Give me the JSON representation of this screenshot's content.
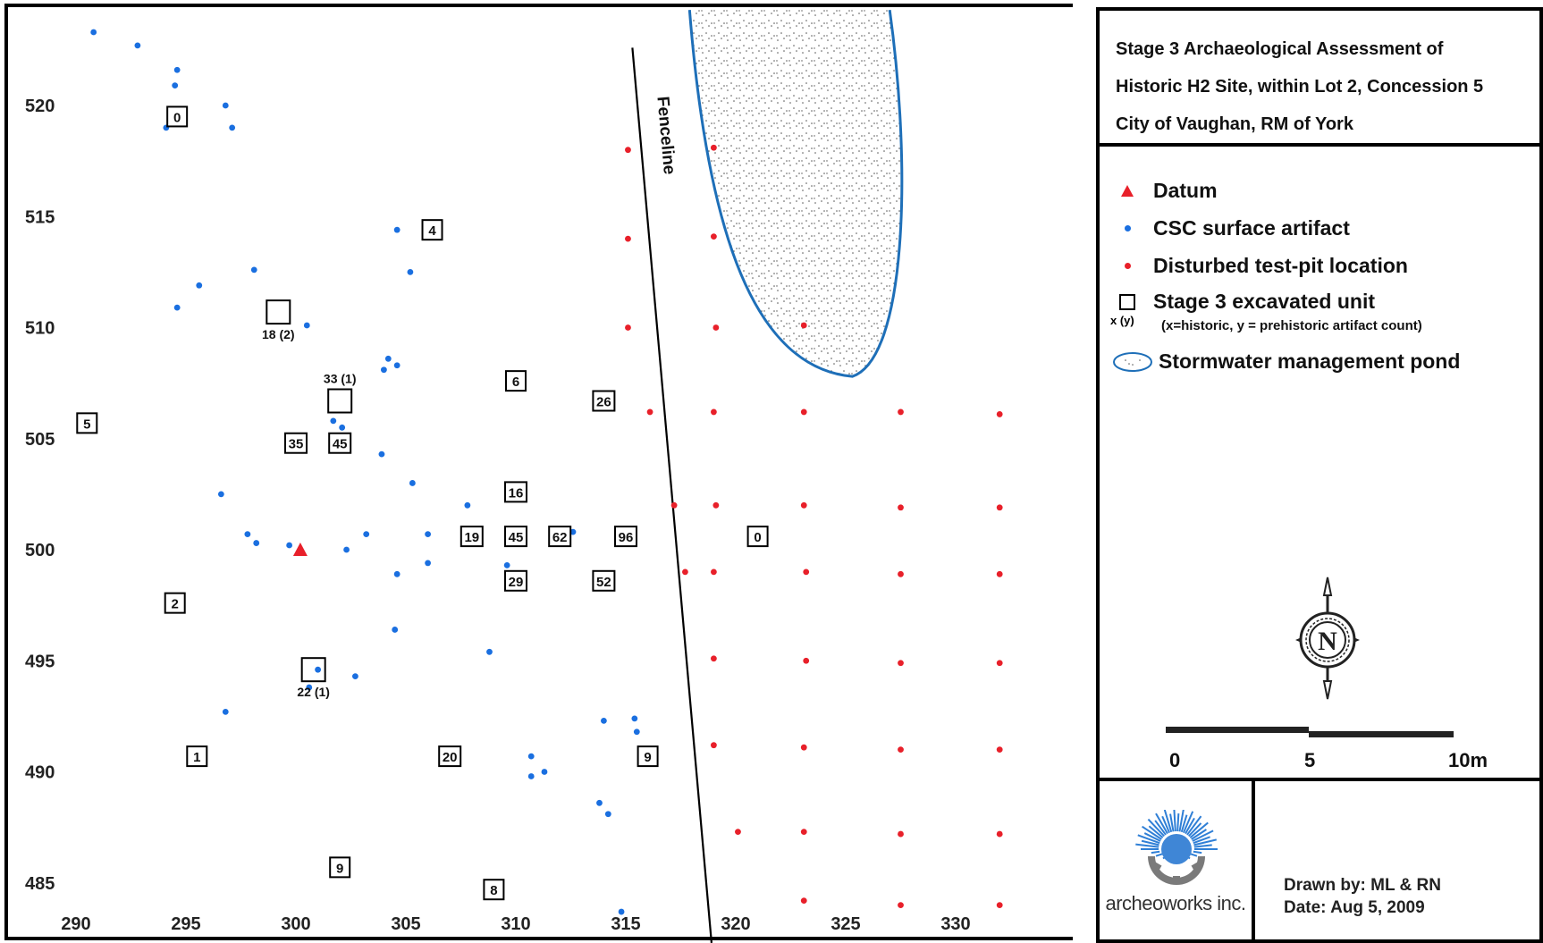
{
  "title_block": {
    "lines": [
      "Stage 3 Archaeological Assessment of",
      "Historic H2 Site, within Lot 2, Concession 5",
      "City of Vaughan, RM of York"
    ]
  },
  "legend": {
    "datum": "Datum",
    "csc_artifact": "CSC surface artifact",
    "test_pit": "Disturbed test-pit location",
    "excavated_unit": "Stage 3 excavated unit",
    "unit_key": "x (y)",
    "unit_note": "(x=historic, y = prehistoric artifact count)",
    "pond": "Stormwater management pond"
  },
  "scale_bar": {
    "labels": [
      "0",
      "5",
      "10m"
    ]
  },
  "logo": {
    "text": "archeoworks inc."
  },
  "credits": {
    "drawn_by": "Drawn by: ML & RN",
    "date": "Date: Aug 5, 2009"
  },
  "colors": {
    "datum": "#e8202a",
    "csc": "#1a6fe0",
    "test_pit": "#e8202a",
    "pond_outline": "#1e6fb8"
  },
  "map": {
    "x_ticks": [
      290,
      295,
      300,
      305,
      310,
      315,
      320,
      325,
      330
    ],
    "y_ticks": [
      520,
      515,
      510,
      505,
      500,
      495,
      490,
      485
    ],
    "fence_label": "Fenceline",
    "fence_line": [
      [
        315.3,
        522.6
      ],
      [
        318.9,
        482.3
      ]
    ],
    "datum_point": [
      300.2,
      500.0
    ],
    "pond": {
      "apex": [
        325.3,
        507.8
      ],
      "left_end": [
        317.9,
        524.3
      ],
      "right_end": [
        327.0,
        524.3
      ]
    },
    "csc_points": [
      [
        290.8,
        523.3
      ],
      [
        292.8,
        522.7
      ],
      [
        294.6,
        521.6
      ],
      [
        294.5,
        520.9
      ],
      [
        296.8,
        520.0
      ],
      [
        297.1,
        519.0
      ],
      [
        294.1,
        519.0
      ],
      [
        304.6,
        514.4
      ],
      [
        305.2,
        512.5
      ],
      [
        298.1,
        512.6
      ],
      [
        295.6,
        511.9
      ],
      [
        294.6,
        510.9
      ],
      [
        300.5,
        510.1
      ],
      [
        304.2,
        508.6
      ],
      [
        304.6,
        508.3
      ],
      [
        304.0,
        508.1
      ],
      [
        301.7,
        505.8
      ],
      [
        302.1,
        505.5
      ],
      [
        303.9,
        504.3
      ],
      [
        305.3,
        503.0
      ],
      [
        296.6,
        502.5
      ],
      [
        307.8,
        502.0
      ],
      [
        297.8,
        500.7
      ],
      [
        298.2,
        500.3
      ],
      [
        299.7,
        500.2
      ],
      [
        302.3,
        500.0
      ],
      [
        303.2,
        500.7
      ],
      [
        306.0,
        500.7
      ],
      [
        306.0,
        499.4
      ],
      [
        304.6,
        498.9
      ],
      [
        309.6,
        499.3
      ],
      [
        312.6,
        500.8
      ],
      [
        304.5,
        496.4
      ],
      [
        308.8,
        495.4
      ],
      [
        301.0,
        494.6
      ],
      [
        302.7,
        494.3
      ],
      [
        300.6,
        493.8
      ],
      [
        296.8,
        492.7
      ],
      [
        314.0,
        492.3
      ],
      [
        315.4,
        492.4
      ],
      [
        315.5,
        491.8
      ],
      [
        310.7,
        490.7
      ],
      [
        310.7,
        489.8
      ],
      [
        311.3,
        490.0
      ],
      [
        313.8,
        488.6
      ],
      [
        314.2,
        488.1
      ],
      [
        314.8,
        483.7
      ]
    ],
    "test_pits": [
      [
        315.1,
        518.0
      ],
      [
        319.0,
        518.1
      ],
      [
        315.1,
        514.0
      ],
      [
        319.0,
        514.1
      ],
      [
        315.1,
        510.0
      ],
      [
        319.1,
        510.0
      ],
      [
        323.1,
        510.1
      ],
      [
        316.1,
        506.2
      ],
      [
        319.0,
        506.2
      ],
      [
        323.1,
        506.2
      ],
      [
        327.5,
        506.2
      ],
      [
        332.0,
        506.1
      ],
      [
        317.2,
        502.0
      ],
      [
        319.1,
        502.0
      ],
      [
        323.1,
        502.0
      ],
      [
        327.5,
        501.9
      ],
      [
        332.0,
        501.9
      ],
      [
        317.7,
        499.0
      ],
      [
        319.0,
        499.0
      ],
      [
        323.2,
        499.0
      ],
      [
        327.5,
        498.9
      ],
      [
        332.0,
        498.9
      ],
      [
        319.0,
        495.1
      ],
      [
        323.2,
        495.0
      ],
      [
        327.5,
        494.9
      ],
      [
        332.0,
        494.9
      ],
      [
        319.0,
        491.2
      ],
      [
        323.1,
        491.1
      ],
      [
        327.5,
        491.0
      ],
      [
        332.0,
        491.0
      ],
      [
        320.1,
        487.3
      ],
      [
        323.1,
        487.3
      ],
      [
        327.5,
        487.2
      ],
      [
        332.0,
        487.2
      ],
      [
        323.1,
        484.2
      ],
      [
        327.5,
        484.0
      ],
      [
        332.0,
        484.0
      ]
    ],
    "labeled_units": [
      {
        "label": "0",
        "x": 294.6,
        "y": 519.5
      },
      {
        "label": "4",
        "x": 306.2,
        "y": 514.4
      },
      {
        "label": "6",
        "x": 310.0,
        "y": 507.6
      },
      {
        "label": "26",
        "x": 314.0,
        "y": 506.7
      },
      {
        "label": "5",
        "x": 290.5,
        "y": 505.7
      },
      {
        "label": "35",
        "x": 300.0,
        "y": 504.8
      },
      {
        "label": "45",
        "x": 302.0,
        "y": 504.8
      },
      {
        "label": "16",
        "x": 310.0,
        "y": 502.6
      },
      {
        "label": "19",
        "x": 308.0,
        "y": 500.6
      },
      {
        "label": "45",
        "x": 310.0,
        "y": 500.6
      },
      {
        "label": "62",
        "x": 312.0,
        "y": 500.6
      },
      {
        "label": "96",
        "x": 315.0,
        "y": 500.6
      },
      {
        "label": "0",
        "x": 321.0,
        "y": 500.6
      },
      {
        "label": "29",
        "x": 310.0,
        "y": 498.6
      },
      {
        "label": "52",
        "x": 314.0,
        "y": 498.6
      },
      {
        "label": "2",
        "x": 294.5,
        "y": 497.6
      },
      {
        "label": "1",
        "x": 295.5,
        "y": 490.7
      },
      {
        "label": "20",
        "x": 307.0,
        "y": 490.7
      },
      {
        "label": "9",
        "x": 316.0,
        "y": 490.7
      },
      {
        "label": "9",
        "x": 302.0,
        "y": 485.7
      },
      {
        "label": "8",
        "x": 309.0,
        "y": 484.7
      }
    ],
    "empty_units": [
      {
        "caption": "18 (2)",
        "x": 299.2,
        "y": 510.7
      },
      {
        "caption": "33 (1)",
        "x": 302.0,
        "y": 506.7
      },
      {
        "caption": "22 (1)",
        "x": 300.8,
        "y": 494.6
      }
    ]
  }
}
